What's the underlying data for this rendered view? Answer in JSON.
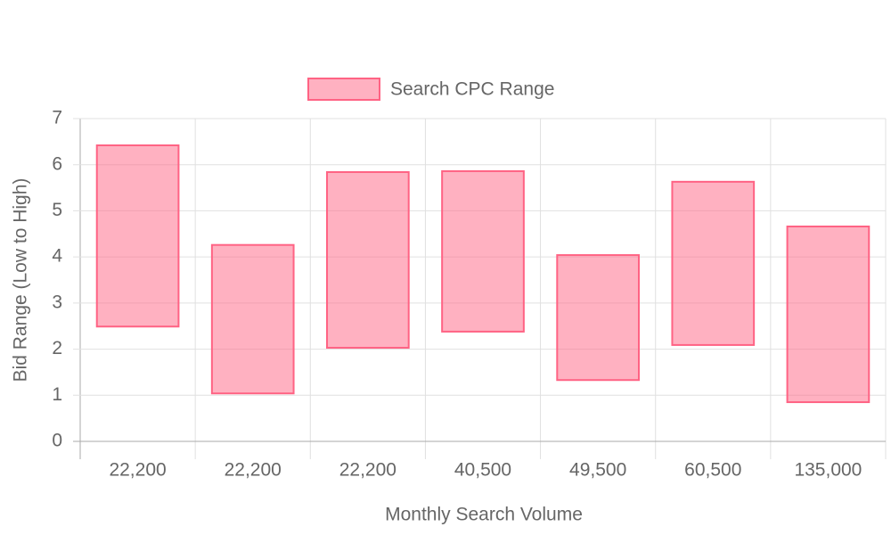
{
  "chart_data": {
    "type": "floating-bar",
    "x_label": "Monthly Search Volume",
    "y_label": "Bid Range (Low to High)",
    "categories": [
      "22,200",
      "22,200",
      "22,200",
      "40,500",
      "49,500",
      "60,500",
      "135,000"
    ],
    "series": [
      {
        "name": "Search CPC Range",
        "color": "#ff6384",
        "values": [
          [
            2.49,
            6.42
          ],
          [
            1.04,
            4.26
          ],
          [
            2.03,
            5.84
          ],
          [
            2.38,
            5.86
          ],
          [
            1.33,
            4.04
          ],
          [
            2.09,
            5.63
          ],
          [
            0.85,
            4.66
          ]
        ]
      }
    ],
    "ylim": [
      0,
      7
    ],
    "yticks": [
      0,
      1,
      2,
      3,
      4,
      5,
      6,
      7
    ],
    "grid": true,
    "legend": "top"
  }
}
